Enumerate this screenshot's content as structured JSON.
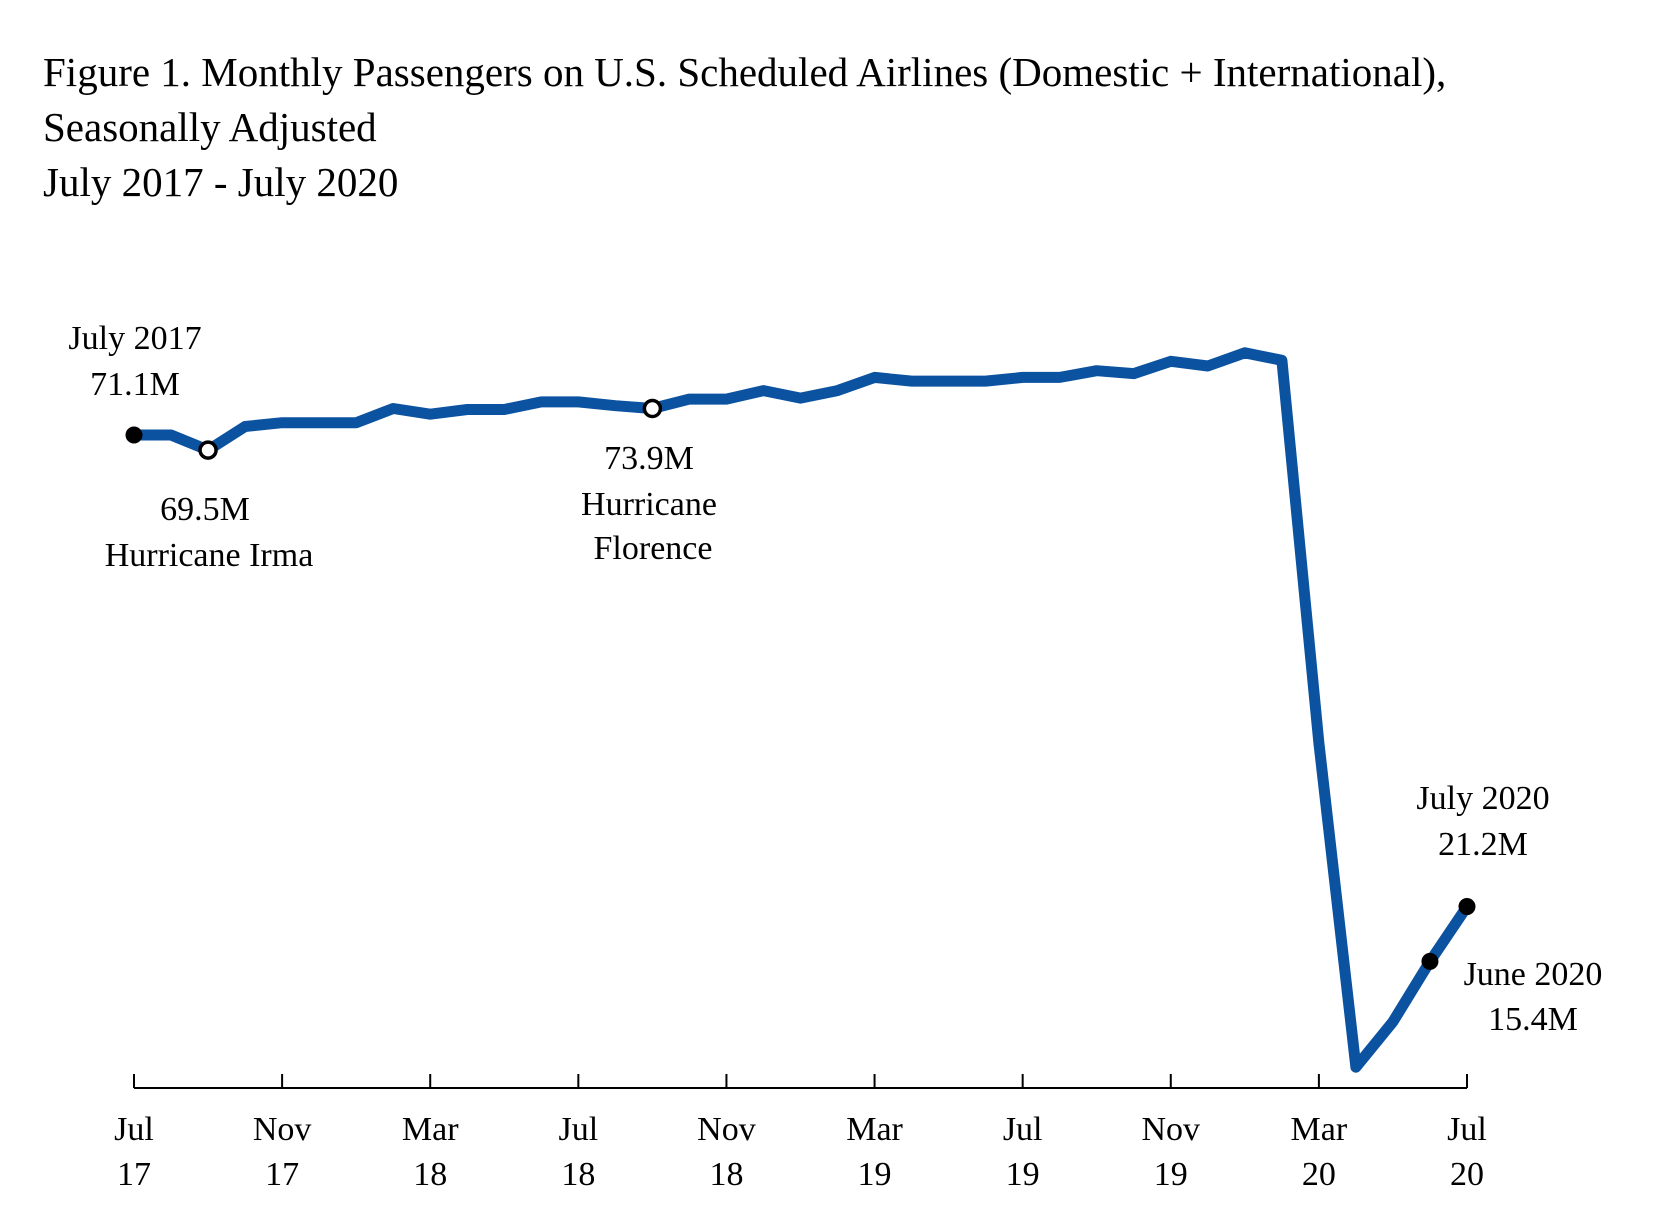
{
  "chart_data": {
    "type": "line",
    "title": [
      "Figure 1. Monthly Passengers on U.S. Scheduled Airlines (Domestic + International),",
      "Seasonally Adjusted",
      "July 2017 - July 2020"
    ],
    "xlabel": "",
    "ylabel": "",
    "grid": false,
    "legend": "none",
    "line_color": "#0b52a0",
    "x": [
      "2017-07",
      "2017-08",
      "2017-09",
      "2017-10",
      "2017-11",
      "2017-12",
      "2018-01",
      "2018-02",
      "2018-03",
      "2018-04",
      "2018-05",
      "2018-06",
      "2018-07",
      "2018-08",
      "2018-09",
      "2018-10",
      "2018-11",
      "2018-12",
      "2019-01",
      "2019-02",
      "2019-03",
      "2019-04",
      "2019-05",
      "2019-06",
      "2019-07",
      "2019-08",
      "2019-09",
      "2019-10",
      "2019-11",
      "2019-12",
      "2020-01",
      "2020-02",
      "2020-03",
      "2020-04",
      "2020-05",
      "2020-06",
      "2020-07"
    ],
    "values": [
      71.1,
      71.1,
      69.5,
      72.0,
      72.4,
      72.4,
      72.4,
      73.9,
      73.3,
      73.8,
      73.8,
      74.6,
      74.6,
      74.2,
      73.9,
      74.9,
      74.9,
      75.8,
      75.0,
      75.8,
      77.2,
      76.8,
      76.8,
      76.8,
      77.2,
      77.2,
      77.9,
      77.6,
      78.9,
      78.4,
      79.8,
      79.0,
      38.5,
      4.2,
      9.0,
      15.4,
      21.2
    ],
    "unit": "millions of passengers",
    "x_ticks": [
      {
        "index": 0,
        "month": "Jul",
        "year": "17"
      },
      {
        "index": 4,
        "month": "Nov",
        "year": "17"
      },
      {
        "index": 8,
        "month": "Mar",
        "year": "18"
      },
      {
        "index": 12,
        "month": "Jul",
        "year": "18"
      },
      {
        "index": 16,
        "month": "Nov",
        "year": "18"
      },
      {
        "index": 20,
        "month": "Mar",
        "year": "19"
      },
      {
        "index": 24,
        "month": "Jul",
        "year": "19"
      },
      {
        "index": 28,
        "month": "Nov",
        "year": "19"
      },
      {
        "index": 32,
        "month": "Mar",
        "year": "20"
      },
      {
        "index": 36,
        "month": "Jul",
        "year": "20"
      }
    ],
    "markers": [
      {
        "index": 0,
        "style": "filled"
      },
      {
        "index": 2,
        "style": "open"
      },
      {
        "index": 14,
        "style": "open"
      },
      {
        "index": 35,
        "style": "filled"
      },
      {
        "index": 36,
        "style": "filled"
      }
    ],
    "annotations": {
      "start": {
        "line1": "July 2017",
        "line2": "71.1M"
      },
      "irma": {
        "line1": "69.5M",
        "line2": "Hurricane Irma"
      },
      "florence": {
        "line1": "73.9M",
        "line2": "Hurricane",
        "line3": "Florence"
      },
      "end": {
        "line1": "July 2020",
        "line2": "21.2M"
      },
      "june": {
        "line1": "June 2020",
        "line2": "15.4M"
      }
    }
  }
}
